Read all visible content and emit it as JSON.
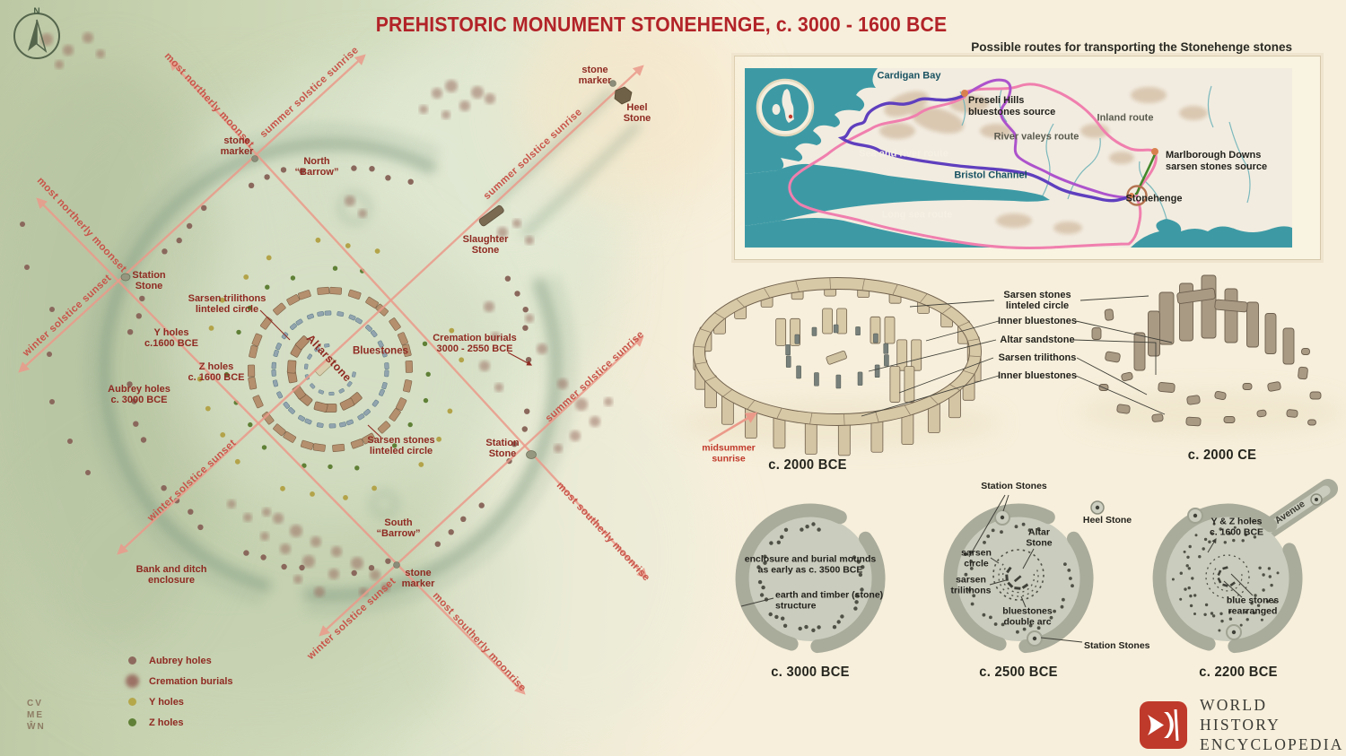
{
  "title": "PREHISTORIC MONUMENT STONEHENGE, c. 3000 - 1600 BCE",
  "compass_n": "N",
  "signature": "CV\nME\nŴN",
  "colors": {
    "accent_red": "#b22328",
    "label_red": "#8f2a22",
    "alignment_line": "#eb9a8a",
    "sea_teal": "#3d9aa5",
    "route_sea_and_river": "#5f3fbe",
    "route_river_valleys": "#ad53cc",
    "route_pink": "#f07fae",
    "route_green": "#43882a"
  },
  "plan": {
    "labels": {
      "stone_marker_nw": "stone\nmarker",
      "north_barrow": "North\n“Barrow”",
      "stone_marker_ne": "stone\nmarker",
      "heel_stone": "Heel\nStone",
      "slaughter_stone": "Slaughter\nStone",
      "station_stone_left": "Station\nStone",
      "sarsen_trilithons": "Sarsen trilithons\nlinteled circle",
      "y_holes": "Y holes\nc.1600 BCE",
      "z_holes": "Z holes\nc. 1600 BCE",
      "aubrey_holes": "Aubrey holes\nc. 3000 BCE",
      "altarstone": "Altarstone",
      "bluestones": "Bluestones",
      "cremation_burials": "Cremation burials\n3000 - 2550 BCE",
      "sarsen_stones": "Sarsen stones\nlinteled circle",
      "station_stone_right": "Station\nStone",
      "south_barrow": "South\n“Barrow”",
      "bank_ditch": "Bank and ditch\nenclosure",
      "stone_marker_s": "stone\nmarker"
    },
    "line_labels": {
      "summer_sunrise": "summer solstice sunrise",
      "winter_sunset": "winter solstice sunset",
      "northerly_moonset": "most northerly moonset",
      "southerly_moonrise": "most southerly moonrise"
    },
    "legend": [
      {
        "label": "Aubrey holes",
        "color": "#8e6a5e"
      },
      {
        "label": "Cremation burials",
        "color": "#9b7265"
      },
      {
        "label": "Y holes",
        "color": "#b5a84b"
      },
      {
        "label": "Z holes",
        "color": "#5f8036"
      }
    ]
  },
  "map": {
    "title": "Possible routes for transporting the Stonehenge stones",
    "labels": {
      "cardigan_bay": "Cardigan Bay",
      "preseli": "Preseli Hills\nbluestones source",
      "inland": "Inland route",
      "river_valleys": "River valeys route",
      "sea_river": "Sea and river route",
      "bristol": "Bristol Channel",
      "marlborough": "Marlborough Downs\nsarsen stones source",
      "stonehenge": "Stonehenge",
      "long_sea": "Long sea route"
    }
  },
  "reconstruction": {
    "caption_bce": "c. 2000 BCE",
    "caption_ce": "c. 2000 CE",
    "midsummer": "midsummer\nsunrise",
    "annotations": [
      "Sarsen stones\nlinteled circle",
      "Inner bluestones",
      "Altar sandstone",
      "Sarsen trilithons",
      "Inner bluestones"
    ]
  },
  "phases": {
    "c3000": {
      "caption": "c. 3000 BCE",
      "enclosure": "enclosure and burial mounds\nas early as c. 3500 BCE",
      "earth_timber": "earth and timber (stone)\nstructure"
    },
    "c2500": {
      "caption": "c. 2500 BCE",
      "station_top": "Station Stones",
      "altar": "Altar\nStone",
      "sarsen_circle": "sarsen\ncircle",
      "sarsen_trilithons": "sarsen\ntrilithons",
      "bluestones": "bluestones\ndouble arc",
      "station_bottom": "Station Stones",
      "heel": "Heel Stone"
    },
    "c2200": {
      "caption": "c. 2200 BCE",
      "yz": "Y & Z holes\nc. 1600 BCE",
      "avenue": "Avenue",
      "blue": "blue stones\nrearranged"
    }
  },
  "logo": {
    "line1": "WORLD HISTORY",
    "line2": "ENCYCLOPEDIA"
  }
}
